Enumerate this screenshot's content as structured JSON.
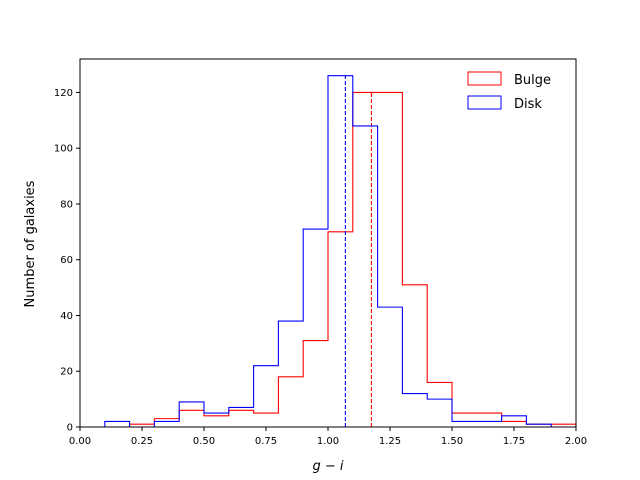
{
  "chart_data": {
    "type": "histogram",
    "xlabel_parts": {
      "g": "g",
      "minus": " − ",
      "i": "i"
    },
    "ylabel": "Number of galaxies",
    "xlim": [
      0.0,
      2.0
    ],
    "ylim": [
      0,
      132
    ],
    "xticks": [
      0.0,
      0.25,
      0.5,
      0.75,
      1.0,
      1.25,
      1.5,
      1.75,
      2.0
    ],
    "xtick_labels": [
      "0.00",
      "0.25",
      "0.50",
      "0.75",
      "1.00",
      "1.25",
      "1.50",
      "1.75",
      "2.00"
    ],
    "yticks": [
      0,
      20,
      40,
      60,
      80,
      100,
      120
    ],
    "ytick_labels": [
      "0",
      "20",
      "40",
      "60",
      "80",
      "100",
      "120"
    ],
    "bin_edges": [
      0.0,
      0.1,
      0.2,
      0.3,
      0.4,
      0.5,
      0.6,
      0.7,
      0.8,
      0.9,
      1.0,
      1.1,
      1.2,
      1.3,
      1.4,
      1.5,
      1.6,
      1.7,
      1.8,
      1.9,
      2.0
    ],
    "series": [
      {
        "name": "Bulge",
        "color": "#ff0000",
        "counts": [
          0,
          0,
          1,
          3,
          6,
          4,
          6,
          5,
          18,
          31,
          70,
          120,
          120,
          51,
          16,
          5,
          5,
          2,
          1,
          1
        ],
        "median": 1.175
      },
      {
        "name": "Disk",
        "color": "#0000ff",
        "counts": [
          0,
          2,
          0,
          2,
          9,
          5,
          7,
          22,
          38,
          71,
          126,
          108,
          43,
          12,
          10,
          2,
          2,
          4,
          1,
          0
        ],
        "median": 1.07
      }
    ],
    "legend": {
      "placement": "top-right"
    },
    "grid": false
  }
}
